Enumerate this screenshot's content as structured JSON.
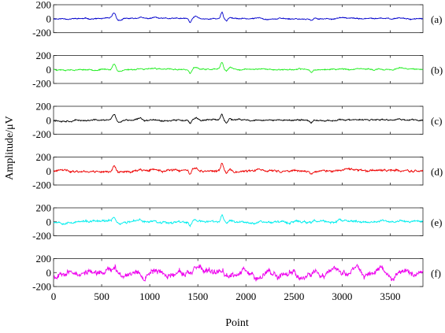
{
  "chart_data": {
    "type": "line",
    "title": "",
    "xlabel": "Point",
    "ylabel": "Amplitude/μV",
    "xlim": [
      0,
      3840
    ],
    "ylim": [
      -200,
      200
    ],
    "x_ticks": [
      "0",
      "500",
      "1000",
      "1500",
      "2000",
      "2500",
      "3000",
      "3500"
    ],
    "y_ticks": [
      "200",
      "0",
      "-200"
    ],
    "grid": false,
    "panels": [
      {
        "label": "(a)",
        "color": "#0000cc",
        "noise": 8,
        "signal": 1.0,
        "seed": 11
      },
      {
        "label": "(b)",
        "color": "#22ee22",
        "noise": 9,
        "signal": 1.0,
        "seed": 23
      },
      {
        "label": "(c)",
        "color": "#000000",
        "noise": 11,
        "signal": 1.0,
        "seed": 37
      },
      {
        "label": "(d)",
        "color": "#ee0000",
        "noise": 16,
        "signal": 1.0,
        "seed": 41
      },
      {
        "label": "(e)",
        "color": "#00eeee",
        "noise": 17,
        "signal": 0.9,
        "seed": 53
      },
      {
        "label": "(f)",
        "color": "#ee00ee",
        "noise": 45,
        "signal": 0.2,
        "seed": 67
      }
    ]
  }
}
